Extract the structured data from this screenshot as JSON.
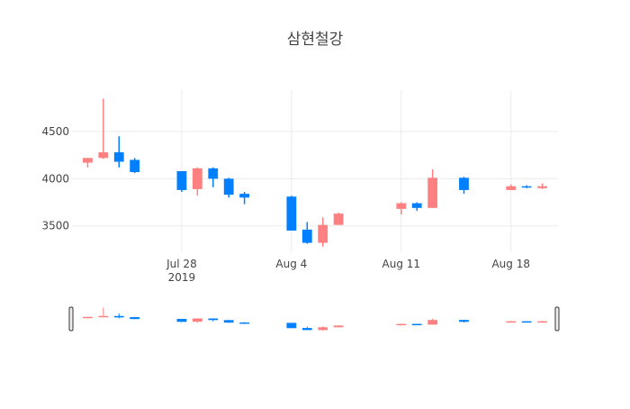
{
  "chart_data": {
    "type": "candlestick",
    "title": "삼현철강",
    "colors": {
      "up": "#ff8080",
      "down": "#0080ff"
    },
    "x_ticks": [
      {
        "date": "2019-07-28",
        "label": "Jul 28",
        "sublabel": "2019"
      },
      {
        "date": "2019-08-04",
        "label": "Aug 4",
        "sublabel": ""
      },
      {
        "date": "2019-08-11",
        "label": "Aug 11",
        "sublabel": ""
      },
      {
        "date": "2019-08-18",
        "label": "Aug 18",
        "sublabel": ""
      }
    ],
    "y_ticks": [
      3500,
      4000,
      4500
    ],
    "xlim": [
      "2019-07-21",
      "2019-08-21"
    ],
    "ylim": [
      3220,
      4940
    ],
    "rangeslider": true,
    "ohlc": [
      {
        "date": "2019-07-22",
        "open": 4170,
        "high": 4220,
        "low": 4120,
        "close": 4220
      },
      {
        "date": "2019-07-23",
        "open": 4220,
        "high": 4850,
        "low": 4210,
        "close": 4280
      },
      {
        "date": "2019-07-24",
        "open": 4280,
        "high": 4450,
        "low": 4120,
        "close": 4180
      },
      {
        "date": "2019-07-25",
        "open": 4200,
        "high": 4220,
        "low": 4060,
        "close": 4070
      },
      {
        "date": "2019-07-28",
        "open": 4080,
        "high": 4080,
        "low": 3860,
        "close": 3880
      },
      {
        "date": "2019-07-29",
        "open": 3890,
        "high": 4120,
        "low": 3820,
        "close": 4110
      },
      {
        "date": "2019-07-30",
        "open": 4110,
        "high": 4120,
        "low": 3910,
        "close": 4000
      },
      {
        "date": "2019-07-31",
        "open": 4000,
        "high": 4010,
        "low": 3800,
        "close": 3830
      },
      {
        "date": "2019-08-01",
        "open": 3840,
        "high": 3860,
        "low": 3730,
        "close": 3800
      },
      {
        "date": "2019-08-04",
        "open": 3810,
        "high": 3820,
        "low": 3450,
        "close": 3450
      },
      {
        "date": "2019-08-05",
        "open": 3460,
        "high": 3540,
        "low": 3310,
        "close": 3320
      },
      {
        "date": "2019-08-06",
        "open": 3320,
        "high": 3590,
        "low": 3280,
        "close": 3510
      },
      {
        "date": "2019-08-07",
        "open": 3510,
        "high": 3640,
        "low": 3510,
        "close": 3630
      },
      {
        "date": "2019-08-11",
        "open": 3680,
        "high": 3750,
        "low": 3620,
        "close": 3740
      },
      {
        "date": "2019-08-12",
        "open": 3740,
        "high": 3750,
        "low": 3660,
        "close": 3690
      },
      {
        "date": "2019-08-13",
        "open": 3690,
        "high": 4100,
        "low": 3690,
        "close": 4010
      },
      {
        "date": "2019-08-15",
        "open": 4010,
        "high": 4020,
        "low": 3840,
        "close": 3880
      },
      {
        "date": "2019-08-18",
        "open": 3880,
        "high": 3940,
        "low": 3880,
        "close": 3920
      },
      {
        "date": "2019-08-19",
        "open": 3920,
        "high": 3930,
        "low": 3900,
        "close": 3910
      },
      {
        "date": "2019-08-20",
        "open": 3900,
        "high": 3950,
        "low": 3890,
        "close": 3920
      }
    ]
  }
}
